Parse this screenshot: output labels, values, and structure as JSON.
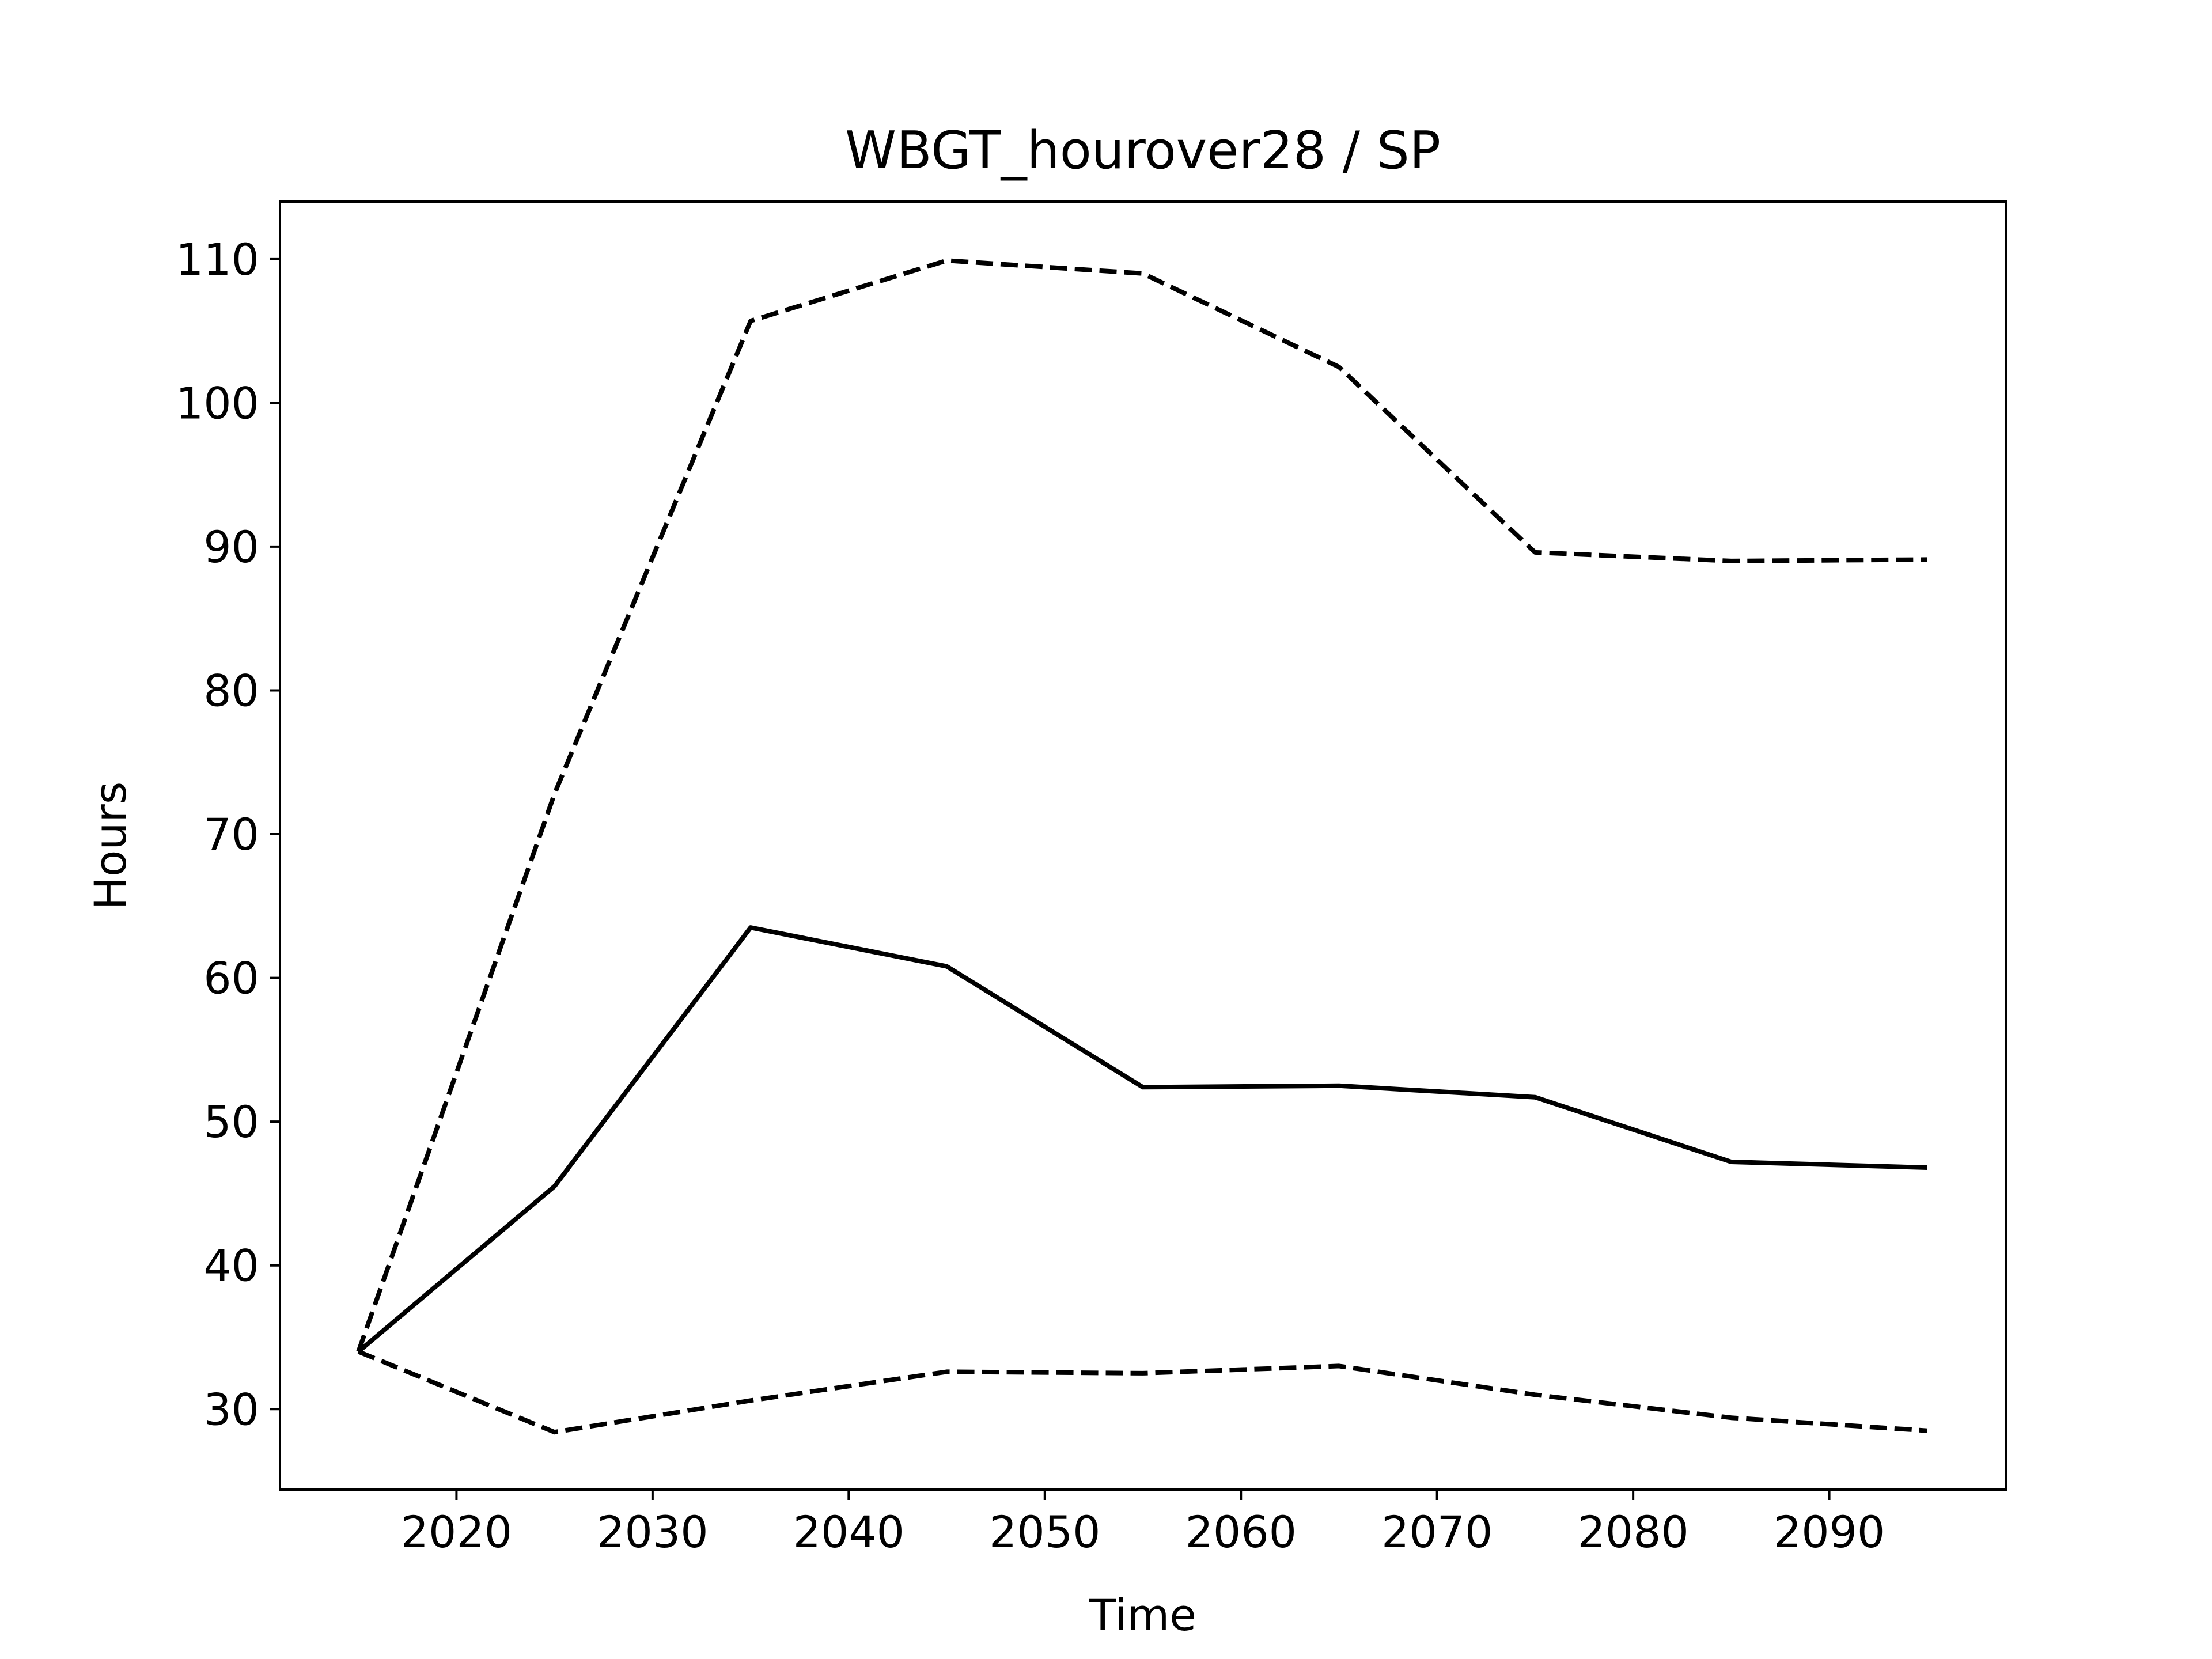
{
  "chart_data": {
    "type": "line",
    "title": "WBGT_hourover28 / SP",
    "xlabel": "Time",
    "ylabel": "Hours",
    "xlim": [
      2011,
      2099
    ],
    "ylim": [
      24.4,
      114
    ],
    "xticks": [
      2020,
      2030,
      2040,
      2050,
      2060,
      2070,
      2080,
      2090
    ],
    "yticks": [
      30,
      40,
      50,
      60,
      70,
      80,
      90,
      100,
      110
    ],
    "grid": false,
    "legend": false,
    "series": [
      {
        "style": "solid",
        "color": "#000000",
        "x": [
          2015,
          2025,
          2035,
          2045,
          2055,
          2065,
          2075,
          2085,
          2095
        ],
        "y": [
          34.0,
          45.5,
          63.5,
          60.8,
          52.4,
          52.5,
          51.7,
          47.2,
          46.8
        ]
      },
      {
        "style": "dashed",
        "color": "#000000",
        "x": [
          2015,
          2025,
          2035,
          2045,
          2055,
          2065,
          2075,
          2085,
          2095
        ],
        "y": [
          34.0,
          72.8,
          105.7,
          109.9,
          109.0,
          102.5,
          89.6,
          89.0,
          89.1
        ]
      },
      {
        "style": "dashed",
        "color": "#000000",
        "x": [
          2015,
          2025,
          2035,
          2045,
          2055,
          2065,
          2075,
          2085,
          2095
        ],
        "y": [
          34.0,
          28.4,
          30.6,
          32.6,
          32.5,
          33.0,
          31.0,
          29.4,
          28.5
        ]
      }
    ]
  }
}
